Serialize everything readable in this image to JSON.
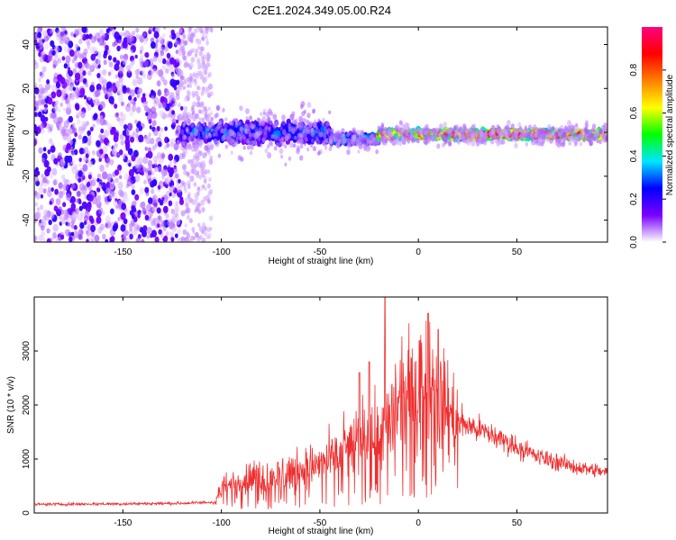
{
  "title": "C2E1.2024.349.05.00.R24",
  "chart_data": [
    {
      "type": "heatmap",
      "xlabel": "Height of straight line (km)",
      "ylabel": "Frequency (Hz)",
      "xlim": [
        -195,
        96
      ],
      "ylim": [
        -50,
        48
      ],
      "xticks": [
        -150,
        -100,
        -50,
        0,
        50
      ],
      "yticks": [
        -40,
        -20,
        0,
        20,
        40
      ],
      "colorbar": {
        "label": "Normalized spectral amplitude",
        "range": [
          0.0,
          1.0
        ],
        "ticks": [
          0.0,
          0.2,
          0.4,
          0.6,
          0.8
        ],
        "tick_labels": [
          "0.0",
          "0.2",
          "0.4",
          "0.6",
          "0.8"
        ],
        "colormap": [
          "#ffffff",
          "#7a00ff",
          "#0000ff",
          "#00e6ff",
          "#00ff00",
          "#ffff00",
          "#ff8000",
          "#ff0000",
          "#ff0080"
        ]
      },
      "features": [
        {
          "x_range": [
            -195,
            -120
          ],
          "freq_range": [
            -50,
            48
          ],
          "amplitude": 0.1,
          "kind": "noise"
        },
        {
          "x_range": [
            -120,
            -45
          ],
          "freq_center": 0,
          "freq_halfwidth": 6,
          "amplitude": 0.3
        },
        {
          "x_range": [
            -45,
            -20
          ],
          "freq_center": -3,
          "freq_halfwidth": 3,
          "amplitude": 0.35
        },
        {
          "x_range": [
            -20,
            96
          ],
          "freq_center": -1,
          "freq_halfwidth": 2.5,
          "amplitude": 0.85
        }
      ]
    },
    {
      "type": "line",
      "xlabel": "Height of straight line (km)",
      "ylabel": "SNR (10 * v/v)",
      "xlim": [
        -195,
        96
      ],
      "ylim": [
        0,
        4000
      ],
      "xticks": [
        -150,
        -100,
        -50,
        0,
        50
      ],
      "yticks": [
        0,
        1000,
        2000,
        3000
      ],
      "color": "#ee3030",
      "profile": [
        {
          "x": -195,
          "y": 160
        },
        {
          "x": -150,
          "y": 170
        },
        {
          "x": -120,
          "y": 180
        },
        {
          "x": -103,
          "y": 200
        },
        {
          "x": -100,
          "y": 450
        },
        {
          "x": -85,
          "y": 650
        },
        {
          "x": -70,
          "y": 700
        },
        {
          "x": -50,
          "y": 900
        },
        {
          "x": -35,
          "y": 1200
        },
        {
          "x": -25,
          "y": 1500
        },
        {
          "x": -17,
          "y": 1400
        },
        {
          "x": -15,
          "y": 1700
        },
        {
          "x": -5,
          "y": 2200
        },
        {
          "x": 0,
          "y": 2500
        },
        {
          "x": 5,
          "y": 2700
        },
        {
          "x": 10,
          "y": 2100
        },
        {
          "x": 20,
          "y": 1700
        },
        {
          "x": 40,
          "y": 1400
        },
        {
          "x": 60,
          "y": 1050
        },
        {
          "x": 80,
          "y": 850
        },
        {
          "x": 96,
          "y": 750
        }
      ],
      "peaks": [
        {
          "x": -17,
          "y": 4000
        },
        {
          "x": 5,
          "y": 3700
        },
        {
          "x": 10,
          "y": 3400
        },
        {
          "x": -30,
          "y": 2600
        },
        {
          "x": -25,
          "y": 2800
        }
      ]
    }
  ]
}
